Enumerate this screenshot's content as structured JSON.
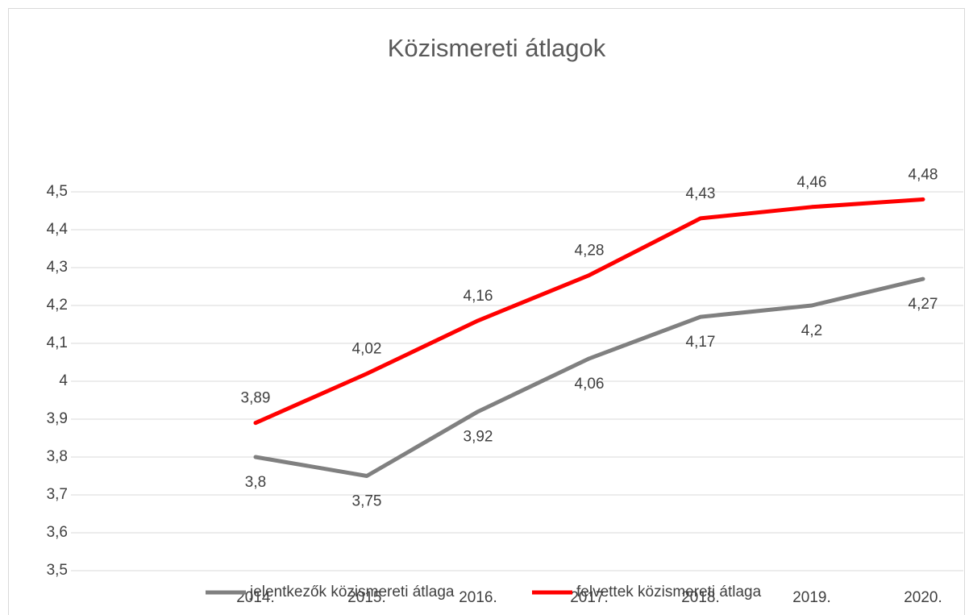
{
  "chart_data": {
    "type": "line",
    "title": "Közismereti átlagok",
    "categories": [
      "2014.",
      "2015.",
      "2016.",
      "2017.",
      "2018.",
      "2019.",
      "2020."
    ],
    "series": [
      {
        "name": "jelentkezők közismereti átlaga",
        "color": "#808080",
        "values": [
          3.8,
          3.75,
          3.92,
          4.06,
          4.17,
          4.2,
          4.27
        ],
        "value_labels": [
          "3,8",
          "3,75",
          "3,92",
          "4,06",
          "4,17",
          "4,2",
          "4,27"
        ]
      },
      {
        "name": "felvettek közismereti átlaga",
        "color": "#ff0000",
        "values": [
          3.89,
          4.02,
          4.16,
          4.28,
          4.43,
          4.46,
          4.48
        ],
        "value_labels": [
          "3,89",
          "4,02",
          "4,16",
          "4,28",
          "4,43",
          "4,46",
          "4,48"
        ]
      }
    ],
    "ylim": [
      3.5,
      4.5
    ],
    "yticks": [
      {
        "value": 3.5,
        "label": "3,5"
      },
      {
        "value": 3.6,
        "label": "3,6"
      },
      {
        "value": 3.7,
        "label": "3,7"
      },
      {
        "value": 3.8,
        "label": "3,8"
      },
      {
        "value": 3.9,
        "label": "3,9"
      },
      4,
      {
        "value": 4.1,
        "label": "4,1"
      },
      {
        "value": 4.2,
        "label": "4,2"
      },
      {
        "value": 4.3,
        "label": "4,3"
      },
      {
        "value": 4.4,
        "label": "4,4"
      },
      {
        "value": 4.5,
        "label": "4,5"
      }
    ],
    "grid": true,
    "legend": "bottom"
  }
}
